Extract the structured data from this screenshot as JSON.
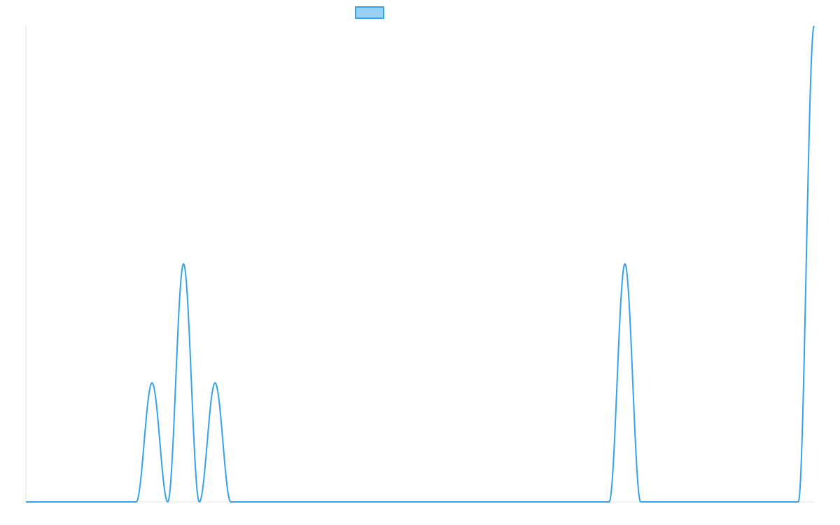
{
  "chart_data": {
    "type": "line",
    "title": "",
    "xlabel": "",
    "ylabel": "",
    "xlim": [
      0,
      100
    ],
    "ylim": [
      0,
      4
    ],
    "grid": false,
    "legend": {
      "placement": "top-center",
      "entries": [
        ""
      ]
    },
    "series": [
      {
        "color": "#36a2eb",
        "fill": "#9ad0f5",
        "x": [
          0,
          14,
          16,
          18,
          20,
          22,
          24,
          26,
          74,
          76,
          78,
          98,
          100
        ],
        "y": [
          0,
          0,
          1,
          0,
          2,
          0,
          1,
          0,
          0,
          2,
          0,
          0,
          4
        ]
      }
    ]
  },
  "colors": {
    "line": "#36a2eb",
    "legend_fill": "#9ad0f5",
    "axis": "#e6e6e6"
  }
}
